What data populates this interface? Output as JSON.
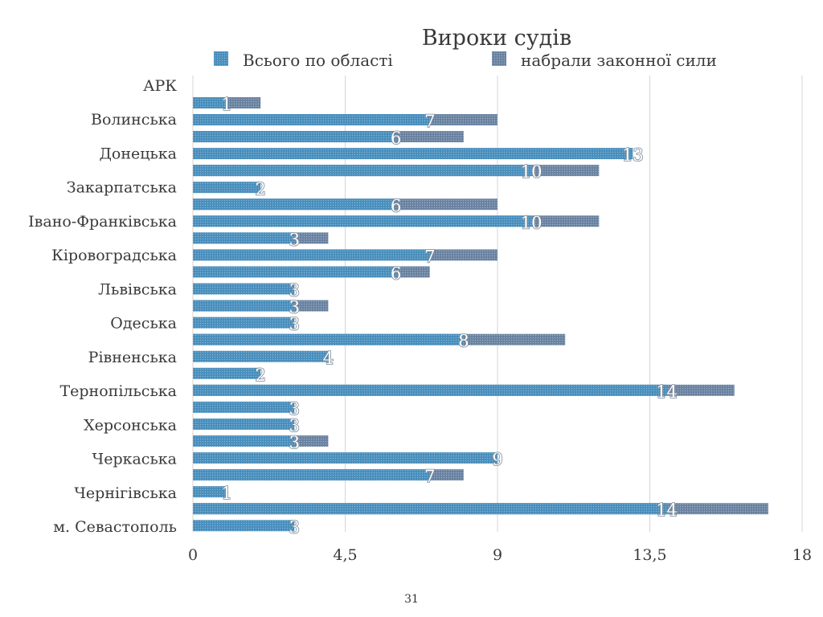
{
  "page_number": "31",
  "chart_data": {
    "type": "bar",
    "orientation": "horizontal",
    "title": "Вироки судів",
    "xlabel": "",
    "ylabel": "",
    "xlim": [
      0,
      18
    ],
    "ticks": [
      0,
      4.5,
      9,
      13.5,
      18
    ],
    "tick_labels": [
      "0",
      "4,5",
      "9",
      "13,5",
      "18"
    ],
    "grid": true,
    "legend_position": "top",
    "category_labels": [
      "АРК",
      "Волинська",
      "Донецька",
      "Закарпатська",
      "Івано-Франківська",
      "Кіровоградська",
      "Львівська",
      "Одеська",
      "Рівненська",
      "Тернопільська",
      "Херсонська",
      "Черкаська",
      "Чернігівська",
      "м. Севастополь"
    ],
    "colors": {
      "front": "#4e93c1",
      "back": "#6f88a6"
    },
    "series": [
      {
        "name": "Всього по області"
      },
      {
        "name": "набрали законної сили"
      }
    ],
    "bars": [
      {
        "labeled": 1,
        "total": 2
      },
      {
        "labeled": 7,
        "total": 9
      },
      {
        "labeled": 6,
        "total": 8
      },
      {
        "labeled": 13,
        "total": 13
      },
      {
        "labeled": 10,
        "total": 12
      },
      {
        "labeled": 2,
        "total": 2
      },
      {
        "labeled": 6,
        "total": 9
      },
      {
        "labeled": 10,
        "total": 12
      },
      {
        "labeled": 3,
        "total": 4
      },
      {
        "labeled": 7,
        "total": 9
      },
      {
        "labeled": 6,
        "total": 7
      },
      {
        "labeled": 3,
        "total": 3
      },
      {
        "labeled": 3,
        "total": 4
      },
      {
        "labeled": 3,
        "total": 3
      },
      {
        "labeled": 8,
        "total": 11
      },
      {
        "labeled": 4,
        "total": 4
      },
      {
        "labeled": 2,
        "total": 2
      },
      {
        "labeled": 14,
        "total": 16
      },
      {
        "labeled": 3,
        "total": 3
      },
      {
        "labeled": 3,
        "total": 3
      },
      {
        "labeled": 3,
        "total": 4
      },
      {
        "labeled": 9,
        "total": 9
      },
      {
        "labeled": 7,
        "total": 8
      },
      {
        "labeled": 1,
        "total": 1
      },
      {
        "labeled": 14,
        "total": 17
      },
      {
        "labeled": 3,
        "total": 3
      }
    ]
  }
}
